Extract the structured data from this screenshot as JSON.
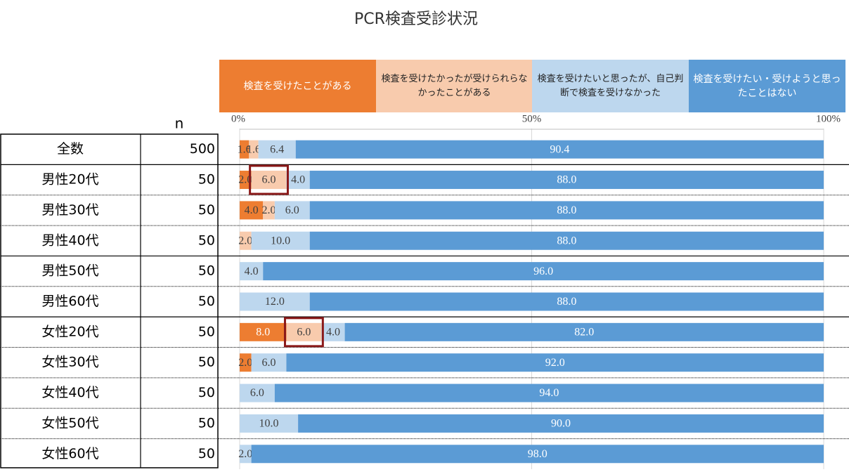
{
  "chart_data": {
    "type": "stacked-bar-horizontal",
    "title": "PCR検査受診状況",
    "n_label": "n",
    "categories": [
      "全数",
      "男性20代",
      "男性30代",
      "男性40代",
      "男性50代",
      "男性60代",
      "女性20代",
      "女性30代",
      "女性40代",
      "女性50代",
      "女性60代"
    ],
    "n": [
      500,
      50,
      50,
      50,
      50,
      50,
      50,
      50,
      50,
      50,
      50
    ],
    "series": [
      {
        "name": "検査を受けたことがある",
        "color": "#ed7d31",
        "values": [
          1.6,
          2.0,
          4.0,
          null,
          null,
          null,
          8.0,
          2.0,
          null,
          null,
          null
        ],
        "value_labels": [
          "1.6",
          "2.0",
          "4.0",
          null,
          null,
          null,
          "8.0",
          "2.0",
          null,
          null,
          null
        ]
      },
      {
        "name": "検査を受けたかったが受けられらなかったことがある",
        "color": "#f8cbad",
        "values": [
          1.6,
          6.0,
          2.0,
          2.0,
          null,
          null,
          6.0,
          null,
          null,
          null,
          null
        ],
        "value_labels": [
          "1.6",
          "6.0",
          "2.0",
          "2.0",
          null,
          null,
          "6.0",
          null,
          null,
          null,
          null
        ]
      },
      {
        "name": "検査を受けたいと思ったが、自己判断で検査を受けなかった",
        "color": "#bdd7ee",
        "values": [
          6.4,
          4.0,
          6.0,
          10.0,
          4.0,
          12.0,
          4.0,
          6.0,
          6.0,
          10.0,
          2.0
        ],
        "value_labels": [
          "6.4",
          "4.0",
          "6.0",
          "10.0",
          "4.0",
          "12.0",
          "4.0",
          "6.0",
          "6.0",
          "10.0",
          "2.0"
        ]
      },
      {
        "name": "検査を受けたい・受けようと思ったことはない",
        "color": "#5b9bd5",
        "values": [
          90.4,
          88.0,
          88.0,
          88.0,
          96.0,
          88.0,
          82.0,
          92.0,
          94.0,
          90.0,
          98.0
        ],
        "value_labels": [
          "90.4",
          "88.0",
          "88.0",
          "88.0",
          "96.0",
          "88.0",
          "82.0",
          "92.0",
          "94.0",
          "90.0",
          "98.0"
        ]
      }
    ],
    "xlim": [
      0,
      100
    ],
    "xticks": [
      {
        "value": 0,
        "label": "0%"
      },
      {
        "value": 50,
        "label": "50%"
      },
      {
        "value": 100,
        "label": "100%"
      }
    ],
    "grid": true
  }
}
